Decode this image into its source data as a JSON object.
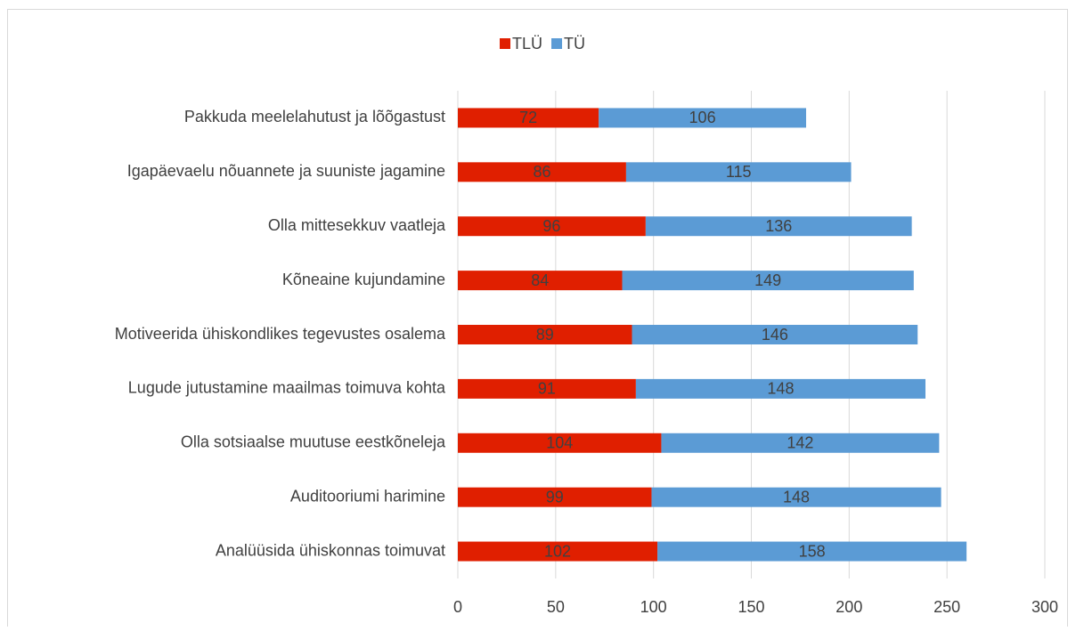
{
  "chart_data": {
    "type": "bar",
    "orientation": "horizontal",
    "stacked": true,
    "categories": [
      "Pakkuda meelelahutust ja lõõgastust",
      "Igapäevaelu nõuannete ja suuniste jagamine",
      "Olla mittesekkuv vaatleja",
      "Kõneaine kujundamine",
      "Motiveerida  ühiskondlikes tegevustes osalema",
      "Lugude jutustamine maailmas toimuva kohta",
      "Olla sotsiaalse muutuse eestkõneleja",
      "Auditooriumi harimine",
      "Analüüsida ühiskonnas toimuvat"
    ],
    "series": [
      {
        "name": "TLÜ",
        "color": "#e01f00",
        "values": [
          72,
          86,
          96,
          84,
          89,
          91,
          104,
          99,
          102
        ]
      },
      {
        "name": "TÜ",
        "color": "#5b9bd5",
        "values": [
          106,
          115,
          136,
          149,
          146,
          148,
          142,
          148,
          158
        ]
      }
    ],
    "xlim": [
      0,
      300
    ],
    "xticks": [
      0,
      50,
      100,
      150,
      200,
      250,
      300
    ],
    "grid": true,
    "legend": "top"
  }
}
